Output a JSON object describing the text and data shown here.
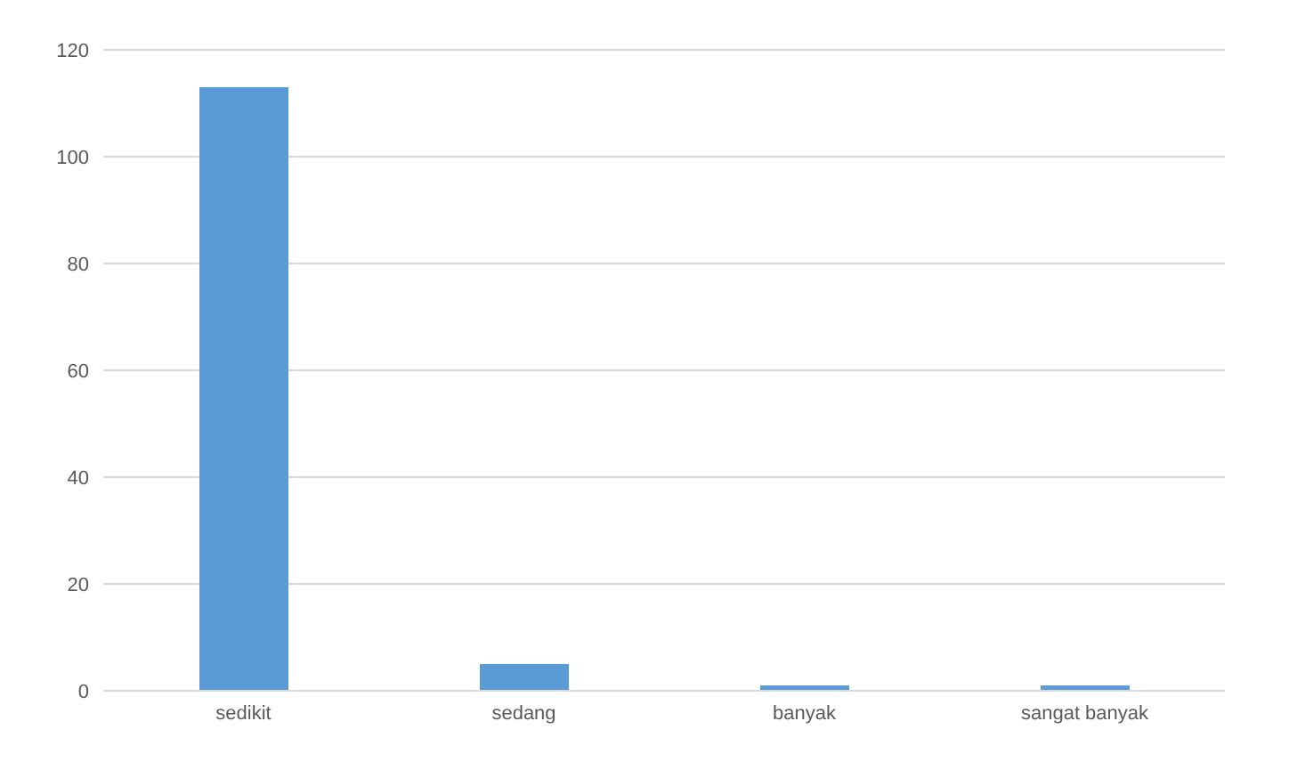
{
  "chart_data": {
    "type": "bar",
    "categories": [
      "sedikit",
      "sedang",
      "banyak",
      "sangat banyak"
    ],
    "values": [
      113,
      5,
      1,
      1
    ],
    "color": "#5b9bd5",
    "ylim": [
      0,
      120
    ],
    "yticks": [
      0,
      20,
      40,
      60,
      80,
      100,
      120
    ],
    "grid": "y"
  }
}
